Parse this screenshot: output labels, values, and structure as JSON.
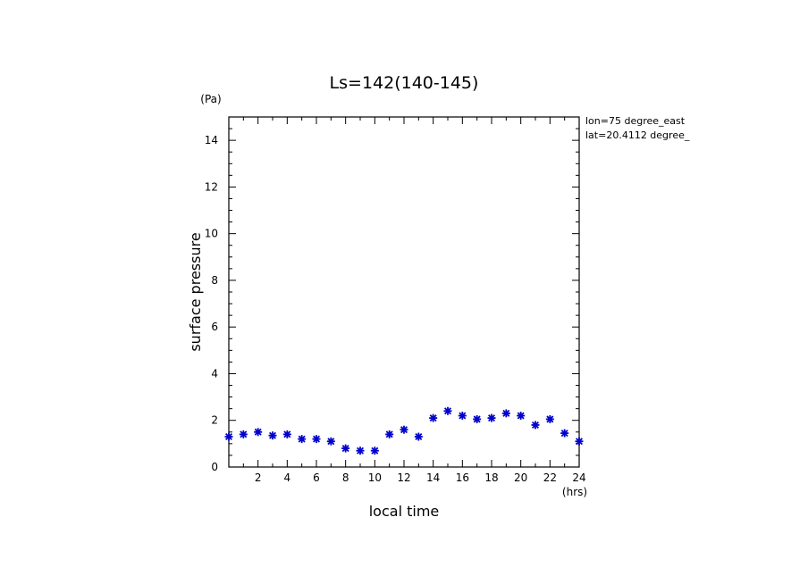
{
  "chart_data": {
    "type": "scatter",
    "title": "Ls=142(140-145)",
    "xlabel": "local time",
    "ylabel": "surface pressure",
    "xunit": "(hrs)",
    "yunit": "(Pa)",
    "annotations": [
      "lon=75 degree_east",
      "lat=20.4112 degree_"
    ],
    "xlim": [
      0,
      24
    ],
    "ylim": [
      0,
      15
    ],
    "xticks": [
      2,
      4,
      6,
      8,
      10,
      12,
      14,
      16,
      18,
      20,
      22,
      24
    ],
    "yticks": [
      0,
      2,
      4,
      6,
      8,
      10,
      12,
      14
    ],
    "marker": "asterisk",
    "marker_color": "#0000cc",
    "grid": false,
    "series": [
      {
        "x": [
          0,
          1,
          2,
          3,
          4,
          5,
          6,
          7,
          8,
          9,
          10,
          11,
          12,
          13,
          14,
          15,
          16,
          17,
          18,
          19,
          20,
          21,
          22,
          23,
          24
        ],
        "y": [
          1.3,
          1.4,
          1.5,
          1.35,
          1.4,
          1.2,
          1.2,
          1.1,
          0.8,
          0.7,
          0.7,
          1.4,
          1.6,
          1.3,
          2.1,
          2.4,
          2.2,
          2.05,
          2.1,
          2.3,
          2.2,
          1.8,
          2.05,
          1.45,
          1.1
        ]
      }
    ]
  }
}
